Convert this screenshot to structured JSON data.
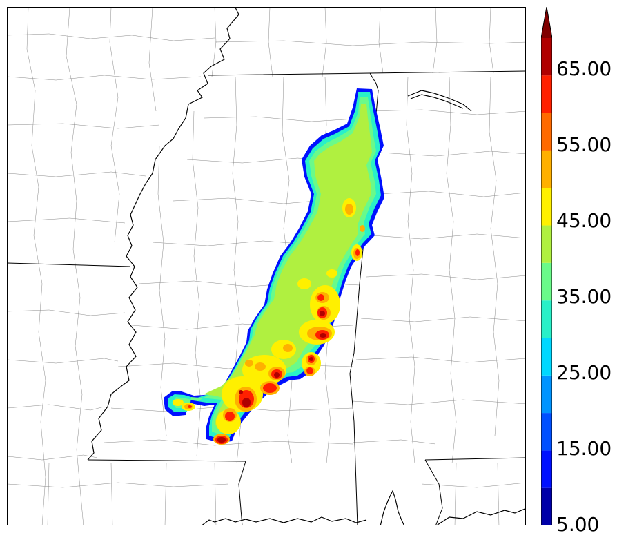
{
  "colors": {
    "state_border": "#000000",
    "county_border": "#8a8a8a",
    "water": "#000000"
  },
  "colorbar": {
    "labels": [
      "65.00",
      "55.00",
      "45.00",
      "35.00",
      "25.00",
      "15.00",
      "5.00"
    ],
    "levels": [
      5,
      10,
      15,
      20,
      25,
      30,
      35,
      40,
      45,
      50,
      55,
      60,
      65,
      70
    ],
    "colors": [
      "#0000a8",
      "#0010ff",
      "#0050ff",
      "#0094ff",
      "#00d8ff",
      "#29f0c8",
      "#6afa8a",
      "#b0f040",
      "#fff000",
      "#ffb000",
      "#ff6a00",
      "#ff2000",
      "#b00000",
      "#800000"
    ],
    "extend": "max"
  }
}
